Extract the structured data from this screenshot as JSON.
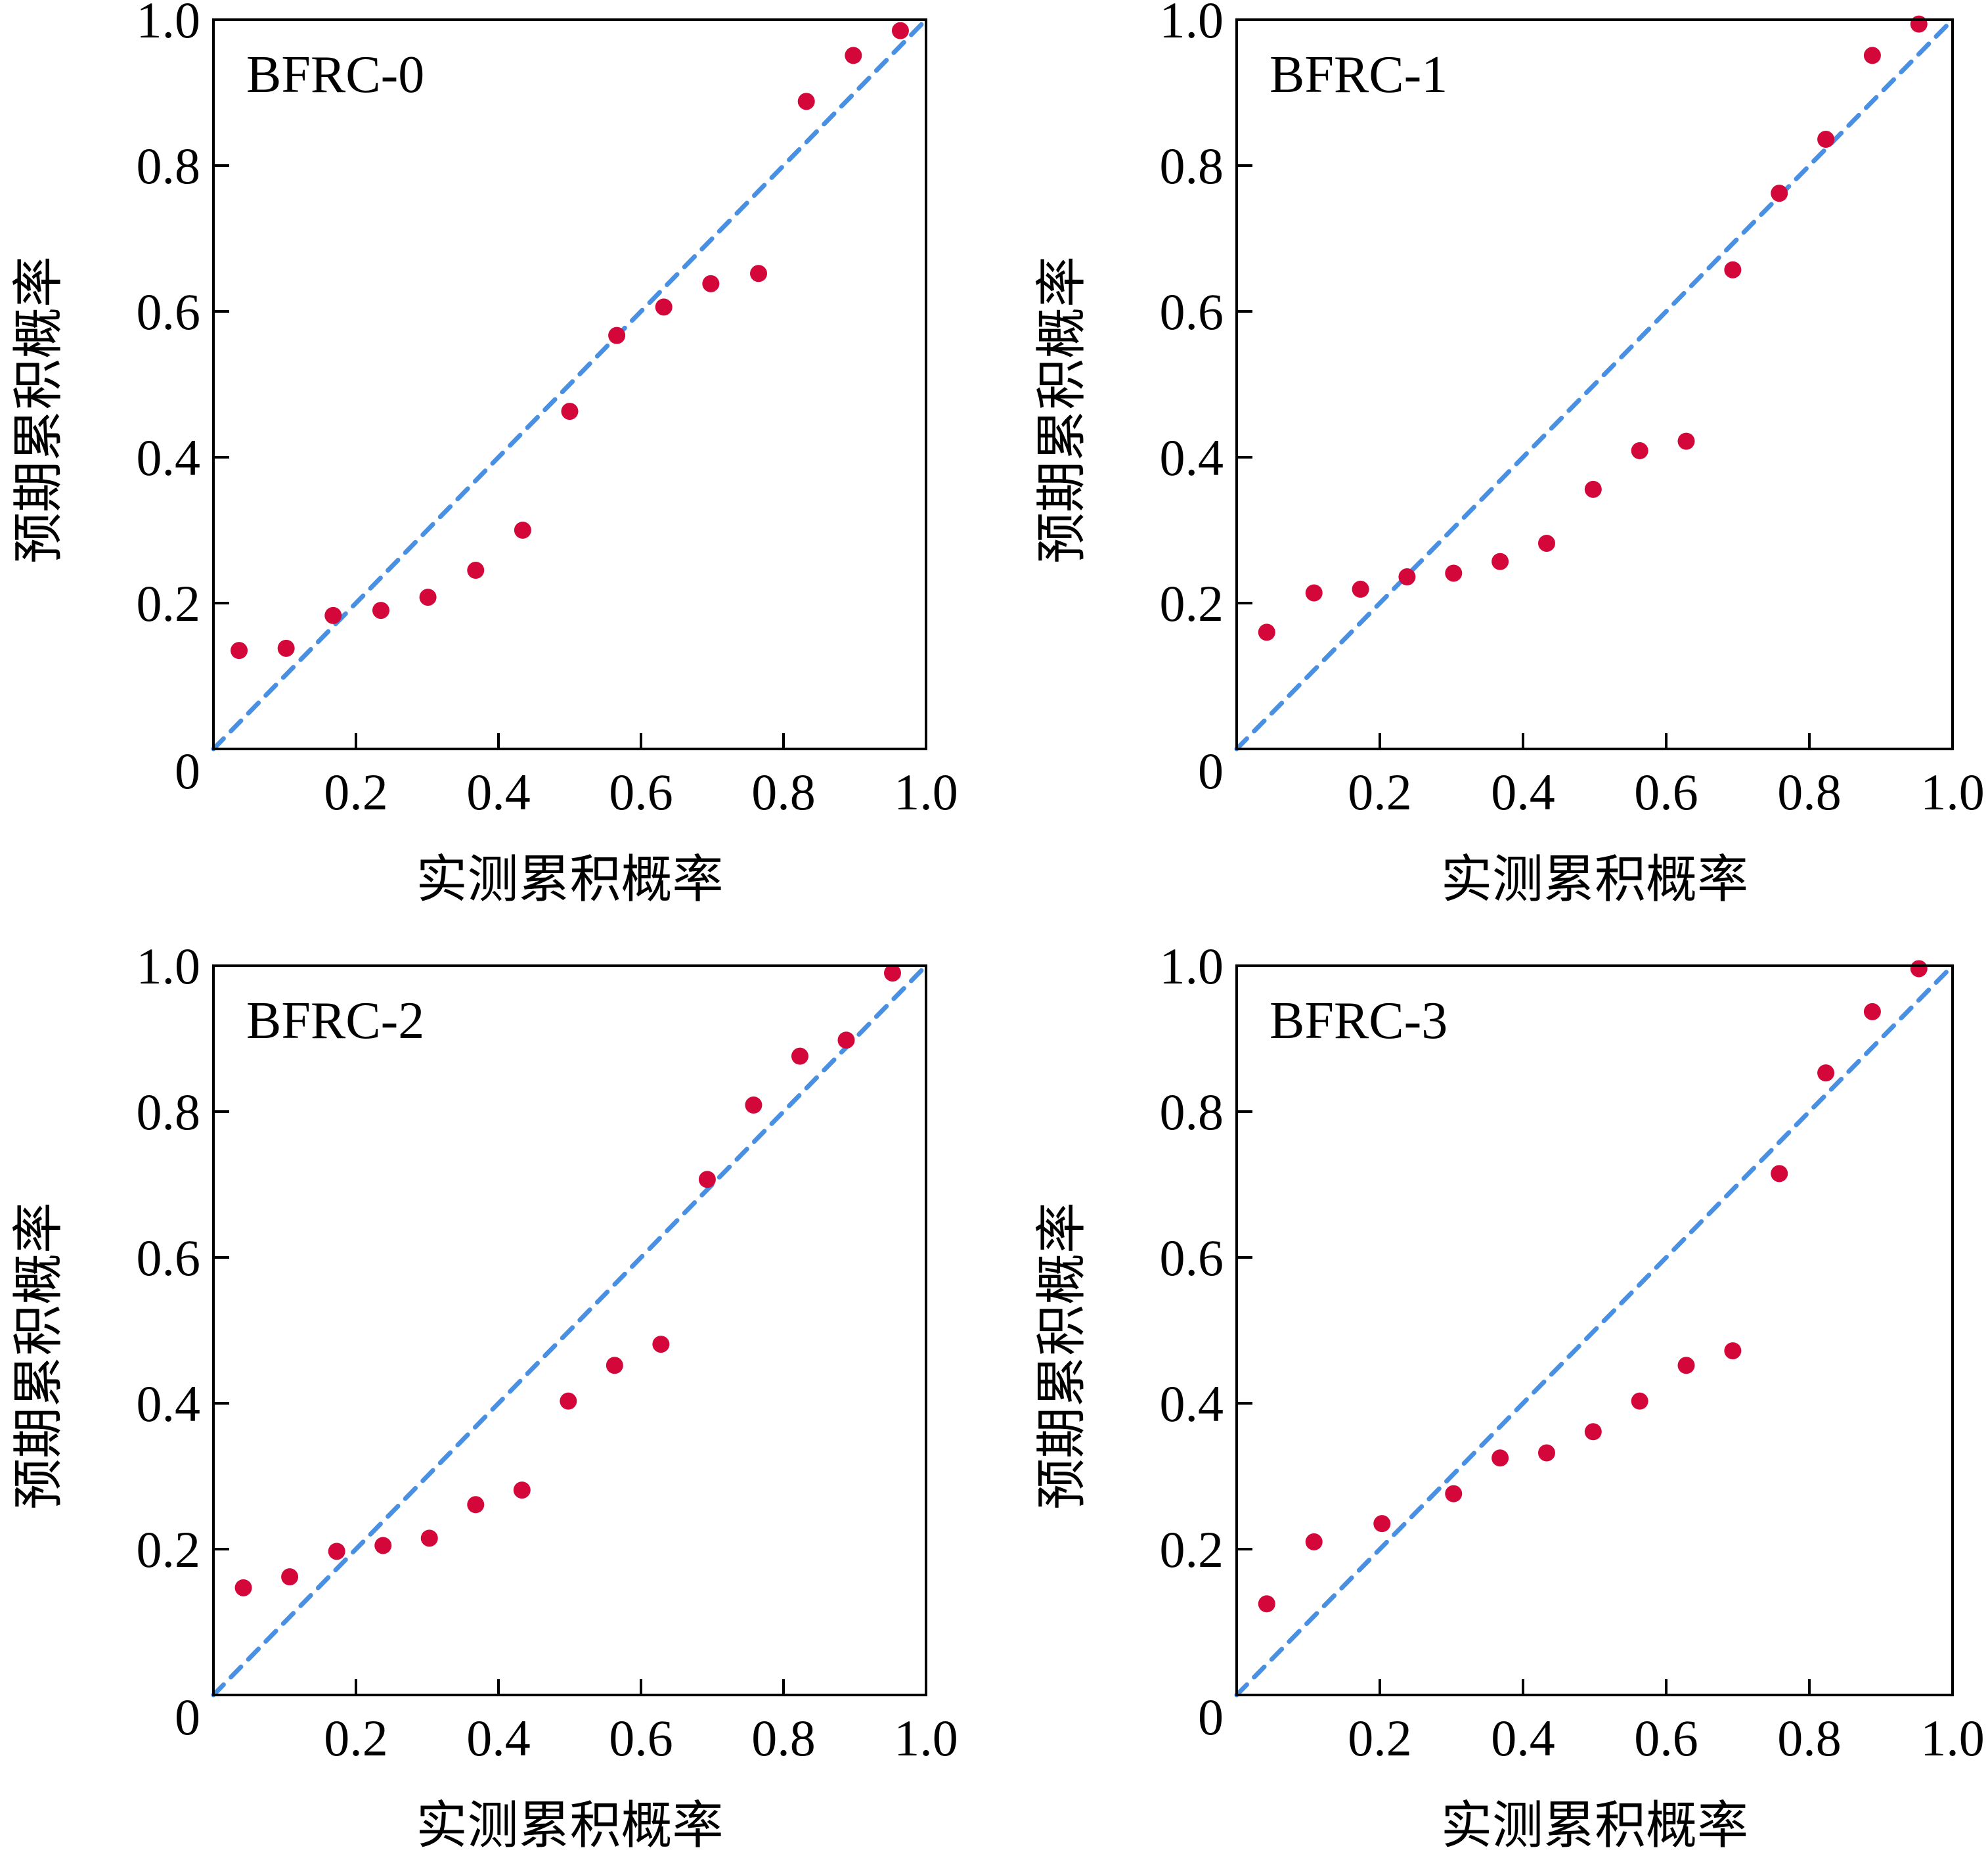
{
  "colors": {
    "points": "#d4073a",
    "reference_line": "#4a90e2",
    "axes": "#000000"
  },
  "chart_data": [
    {
      "type": "scatter",
      "title": "BFRC-0",
      "xlabel": "实测累积概率",
      "ylabel": "预期累积概率",
      "xlim": [
        0,
        1.0
      ],
      "ylim": [
        0,
        1.0
      ],
      "xticks": [
        0.2,
        0.4,
        0.6,
        0.8,
        1.0
      ],
      "yticks": [
        0.2,
        0.4,
        0.6,
        0.8,
        1.0
      ],
      "xtick_labels": [
        "0.2",
        "0.4",
        "0.6",
        "0.8",
        "1.0"
      ],
      "ytick_labels": [
        "0.2",
        "0.4",
        "0.6",
        "0.8",
        "1.0"
      ],
      "origin_label": "0",
      "reference_line": "y = x",
      "grid": false,
      "x": [
        0.036,
        0.102,
        0.168,
        0.235,
        0.301,
        0.368,
        0.434,
        0.5,
        0.566,
        0.632,
        0.698,
        0.765,
        0.832,
        0.898,
        0.964
      ],
      "y": [
        0.135,
        0.138,
        0.183,
        0.19,
        0.208,
        0.245,
        0.3,
        0.463,
        0.567,
        0.606,
        0.638,
        0.652,
        0.888,
        0.951,
        0.985
      ]
    },
    {
      "type": "scatter",
      "title": "BFRC-1",
      "xlabel": "实测累积概率",
      "ylabel": "预期累积概率",
      "xlim": [
        0,
        1.0
      ],
      "ylim": [
        0,
        1.0
      ],
      "xticks": [
        0.2,
        0.4,
        0.6,
        0.8,
        1.0
      ],
      "yticks": [
        0.2,
        0.4,
        0.6,
        0.8,
        1.0
      ],
      "xtick_labels": [
        "0.2",
        "0.4",
        "0.6",
        "0.8",
        "1.0"
      ],
      "ytick_labels": [
        "0.2",
        "0.4",
        "0.6",
        "0.8",
        "1.0"
      ],
      "origin_label": "0",
      "reference_line": "y = x",
      "grid": false,
      "x": [
        0.042,
        0.108,
        0.173,
        0.238,
        0.303,
        0.368,
        0.433,
        0.498,
        0.563,
        0.628,
        0.693,
        0.758,
        0.823,
        0.888,
        0.953
      ],
      "y": [
        0.16,
        0.214,
        0.219,
        0.236,
        0.241,
        0.257,
        0.282,
        0.356,
        0.409,
        0.422,
        0.657,
        0.762,
        0.836,
        0.951,
        0.994
      ]
    },
    {
      "type": "scatter",
      "title": "BFRC-2",
      "xlabel": "实测累积概率",
      "ylabel": "预期累积概率",
      "xlim": [
        0,
        1.0
      ],
      "ylim": [
        0,
        1.0
      ],
      "xticks": [
        0.2,
        0.4,
        0.6,
        0.8,
        1.0
      ],
      "yticks": [
        0.2,
        0.4,
        0.6,
        0.8,
        1.0
      ],
      "xtick_labels": [
        "0.2",
        "0.4",
        "0.6",
        "0.8",
        "1.0"
      ],
      "ytick_labels": [
        "0.2",
        "0.4",
        "0.6",
        "0.8",
        "1.0"
      ],
      "origin_label": "0",
      "reference_line": "y = x",
      "grid": false,
      "x": [
        0.042,
        0.107,
        0.173,
        0.238,
        0.303,
        0.368,
        0.433,
        0.498,
        0.563,
        0.628,
        0.693,
        0.758,
        0.823,
        0.888,
        0.953
      ],
      "y": [
        0.147,
        0.162,
        0.197,
        0.205,
        0.215,
        0.261,
        0.281,
        0.403,
        0.452,
        0.481,
        0.707,
        0.809,
        0.876,
        0.898,
        0.99
      ]
    },
    {
      "type": "scatter",
      "title": "BFRC-3",
      "xlabel": "实测累积概率",
      "ylabel": "预期累积概率",
      "xlim": [
        0,
        1.0
      ],
      "ylim": [
        0,
        1.0
      ],
      "xticks": [
        0.2,
        0.4,
        0.6,
        0.8,
        1.0
      ],
      "yticks": [
        0.2,
        0.4,
        0.6,
        0.8,
        1.0
      ],
      "xtick_labels": [
        "0.2",
        "0.4",
        "0.6",
        "0.8",
        "1.0"
      ],
      "ytick_labels": [
        "0.2",
        "0.4",
        "0.6",
        "0.8",
        "1.0"
      ],
      "origin_label": "0",
      "reference_line": "y = x",
      "grid": false,
      "x": [
        0.042,
        0.108,
        0.203,
        0.303,
        0.368,
        0.433,
        0.498,
        0.563,
        0.628,
        0.693,
        0.758,
        0.823,
        0.888,
        0.953
      ],
      "y": [
        0.125,
        0.21,
        0.235,
        0.276,
        0.325,
        0.332,
        0.361,
        0.403,
        0.452,
        0.472,
        0.715,
        0.853,
        0.937,
        0.996
      ]
    }
  ]
}
